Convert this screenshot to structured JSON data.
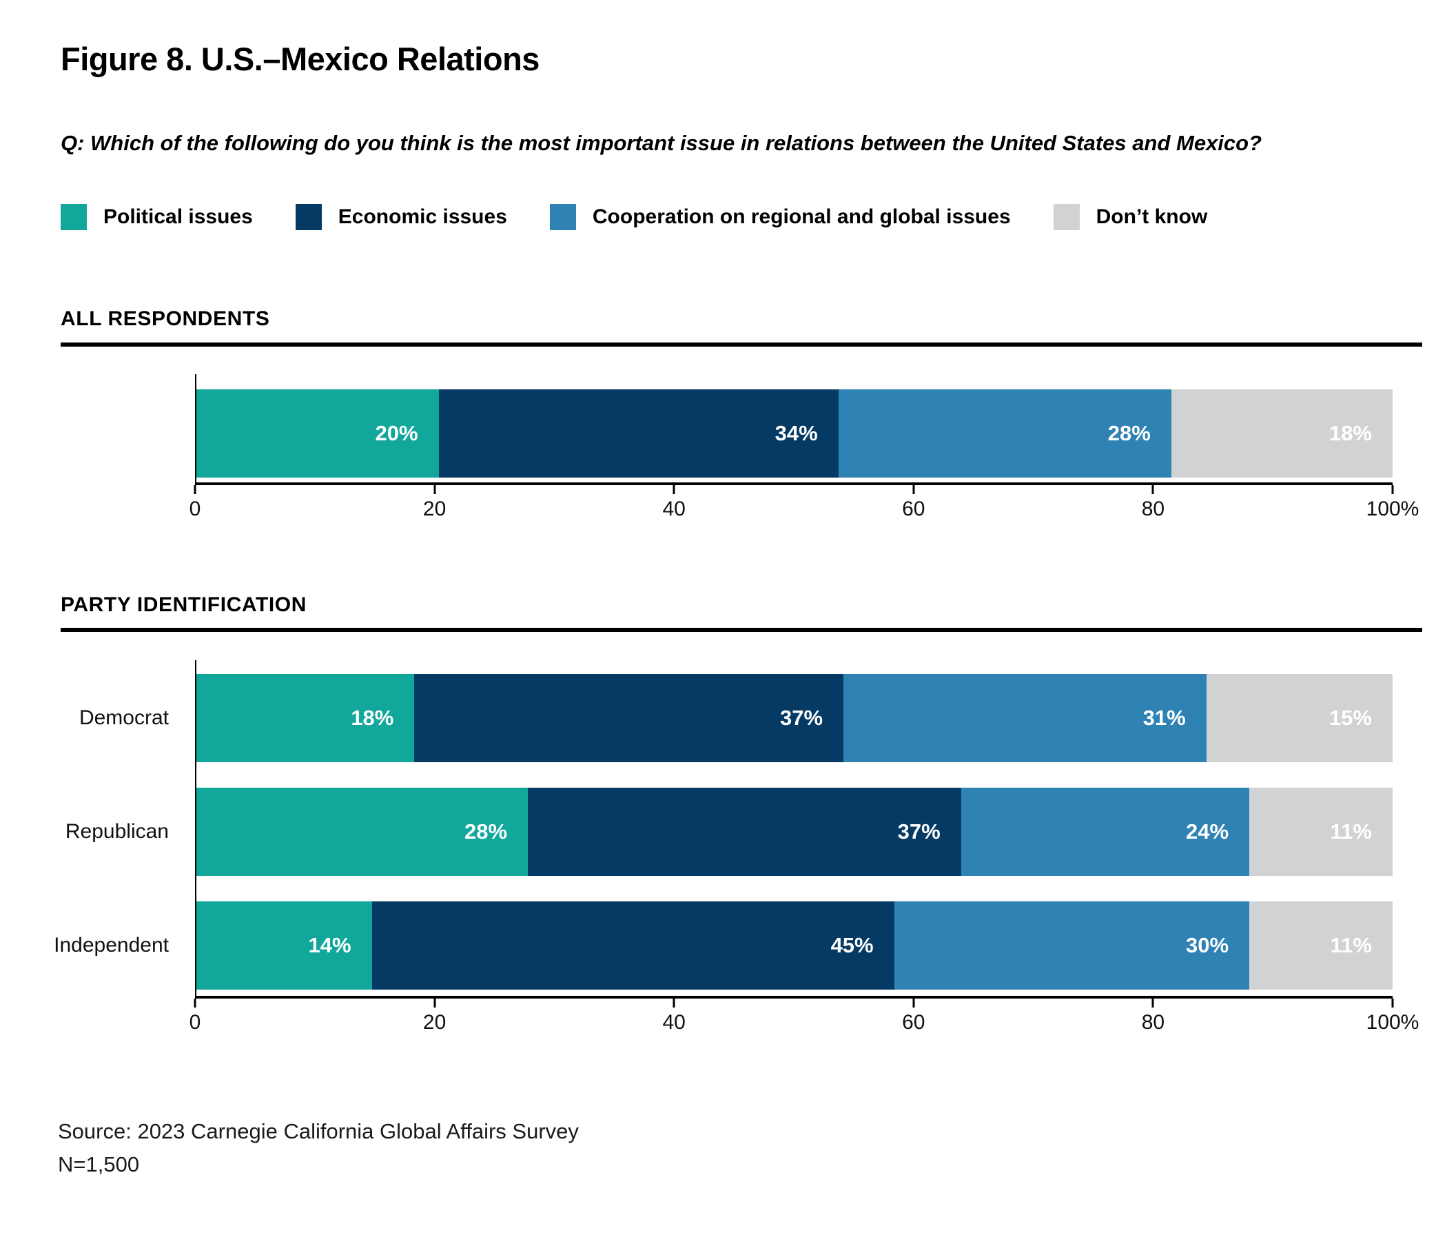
{
  "figure": {
    "title": "Figure 8. U.S.–Mexico Relations",
    "question": "Q: Which of the following do you think is the most important issue in relations between the United States and Mexico?"
  },
  "colors": {
    "political": "#12A79B",
    "economic": "#053A64",
    "cooperation": "#2F82B4",
    "dont_know": "#D1D2D3",
    "axis": "#000000",
    "bar_label_text": "#ffffff"
  },
  "legend": {
    "position": "top",
    "items": [
      {
        "label": "Political issues",
        "color": "#12A79B"
      },
      {
        "label": "Economic issues",
        "color": "#053A64"
      },
      {
        "label": "Cooperation on regional and global issues",
        "color": "#2F82B4"
      },
      {
        "label": "Don’t know",
        "color": "#D1D2D3"
      }
    ]
  },
  "sections": [
    {
      "header": "ALL RESPONDENTS"
    },
    {
      "header": "PARTY IDENTIFICATION"
    }
  ],
  "chart_data": [
    {
      "type": "bar",
      "orientation": "horizontal-stacked",
      "title": "ALL RESPONDENTS",
      "categories": [
        ""
      ],
      "series": [
        {
          "name": "Political issues",
          "color": "#12A79B",
          "values": [
            20
          ]
        },
        {
          "name": "Economic issues",
          "color": "#053A64",
          "values": [
            34
          ]
        },
        {
          "name": "Cooperation on regional and global issues",
          "color": "#2F82B4",
          "values": [
            28
          ]
        },
        {
          "name": "Don’t know",
          "color": "#D1D2D3",
          "values": [
            18
          ]
        }
      ],
      "value_label_format": "percent",
      "xlim": [
        0,
        100
      ],
      "grid": false,
      "xticks": [
        {
          "value": 0,
          "label": "0"
        },
        {
          "value": 20,
          "label": "20"
        },
        {
          "value": 40,
          "label": "40"
        },
        {
          "value": 60,
          "label": "60"
        },
        {
          "value": 80,
          "label": "80"
        },
        {
          "value": 100,
          "label": "100%"
        }
      ]
    },
    {
      "type": "bar",
      "orientation": "horizontal-stacked",
      "title": "PARTY IDENTIFICATION",
      "categories": [
        "Democrat",
        "Republican",
        "Independent"
      ],
      "series": [
        {
          "name": "Political issues",
          "color": "#12A79B",
          "values": [
            18,
            28,
            14
          ]
        },
        {
          "name": "Economic issues",
          "color": "#053A64",
          "values": [
            37,
            37,
            45
          ]
        },
        {
          "name": "Cooperation on regional and global issues",
          "color": "#2F82B4",
          "values": [
            31,
            24,
            30
          ]
        },
        {
          "name": "Don’t know",
          "color": "#D1D2D3",
          "values": [
            15,
            11,
            11
          ]
        }
      ],
      "value_label_format": "percent",
      "xlim": [
        0,
        100
      ],
      "grid": false,
      "xticks": [
        {
          "value": 0,
          "label": "0"
        },
        {
          "value": 20,
          "label": "20"
        },
        {
          "value": 40,
          "label": "40"
        },
        {
          "value": 60,
          "label": "60"
        },
        {
          "value": 80,
          "label": "80"
        },
        {
          "value": 100,
          "label": "100%"
        }
      ]
    }
  ],
  "source": {
    "line1": "Source: 2023 Carnegie California Global Affairs Survey",
    "line2": "N=1,500"
  }
}
